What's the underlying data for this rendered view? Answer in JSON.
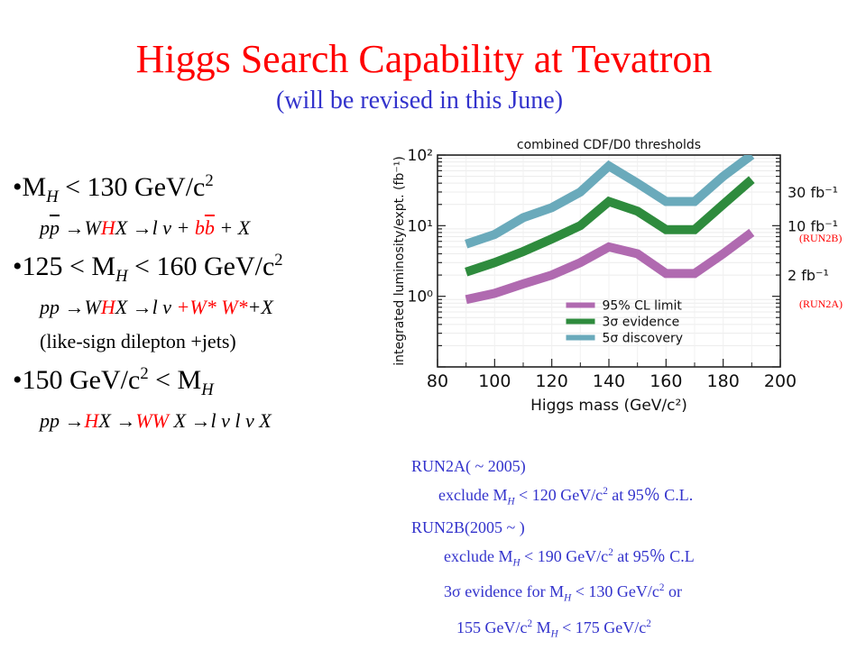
{
  "title": "Higgs Search Capability at Tevatron",
  "subtitle": "(will be revised in this June)",
  "bullets": {
    "b1": {
      "dot": "•M",
      "sub": "H",
      "rest": " < 130 GeV/c",
      "sup": "2"
    },
    "r1": {
      "p1": "p",
      "p2": "p",
      "arrow1": " →W",
      "h": "H",
      "x": "X →l ",
      "nu": "ν",
      "plus": " + ",
      "b1": "b",
      "b2": "b",
      "end": " + X"
    },
    "b2": {
      "pre": "•125 < M",
      "sub": "H",
      "rest": " < 160 GeV/c",
      "sup": "2"
    },
    "r2": {
      "pp": "pp →W",
      "h": "H",
      "x": "X →l ",
      "nu": "ν",
      "ww": " +W* W*",
      "end": "+X"
    },
    "note": "(like-sign dilepton +jets)",
    "b3": {
      "pre": "•150 GeV/c",
      "sup": "2",
      "mid": " < M",
      "sub": "H"
    },
    "r3": {
      "pp": "pp →",
      "h": "H",
      "x": "X →",
      "ww": "WW",
      "end1": " X →l ",
      "nu1": "ν",
      "l2": " l ",
      "nu2": "ν",
      "end2": " X"
    }
  },
  "side_labels": {
    "run2b": "(RUN2B)",
    "run2a": "(RUN2A)"
  },
  "chart_data": {
    "type": "line",
    "title": "combined CDF/D0 thresholds",
    "xlabel": "Higgs mass (GeV/c²)",
    "ylabel": "integrated luminosity/expt. (fb⁻¹)",
    "xlim": [
      80,
      200
    ],
    "ylim": [
      0.1,
      100
    ],
    "yscale": "log",
    "x_ticks": [
      "80",
      "100",
      "120",
      "140",
      "160",
      "180",
      "200"
    ],
    "y_ticks": [
      "10⁰",
      "10¹",
      "10²"
    ],
    "right_labels": [
      "30 fb⁻¹",
      "10 fb⁻¹",
      "2 fb⁻¹"
    ],
    "right_values": [
      30,
      10,
      2
    ],
    "legend_position": "bottom-center",
    "series": [
      {
        "name": "95% CL limit",
        "color": "#b06ab0",
        "x": [
          90,
          100,
          110,
          120,
          130,
          140,
          150,
          160,
          170,
          180,
          190
        ],
        "y": [
          0.9,
          1.1,
          1.5,
          2.0,
          3.0,
          5.0,
          4.0,
          2.1,
          2.1,
          4.0,
          8.0
        ]
      },
      {
        "name": "3σ evidence",
        "color": "#2e8b3d",
        "x": [
          90,
          100,
          110,
          120,
          130,
          140,
          150,
          160,
          170,
          180,
          190
        ],
        "y": [
          2.2,
          3.0,
          4.3,
          6.5,
          10,
          22,
          16,
          8.8,
          8.8,
          20,
          45
        ]
      },
      {
        "name": "5σ discovery",
        "color": "#6aaabb",
        "x": [
          90,
          100,
          110,
          120,
          130,
          140,
          150,
          160,
          170,
          180,
          190
        ],
        "y": [
          5.5,
          7.5,
          13,
          18,
          30,
          70,
          40,
          22,
          22,
          50,
          100
        ]
      }
    ]
  },
  "notes": {
    "l1": "RUN2A( ~ 2005)",
    "l2": {
      "a": "exclude M",
      "sub": "H",
      "b": " < 120 GeV/c",
      "sup": "2",
      "c": " at 95％ C.L."
    },
    "l3": "RUN2B(2005 ~ )",
    "l4": {
      "a": "exclude M",
      "sub": "H",
      "b": " < 190 GeV/c",
      "sup": "2",
      "c": " at 95％ C.L"
    },
    "l5": {
      "a": "3σ evidence for M",
      "sub": "H",
      "b": " < 130 GeV/c",
      "sup": "2",
      "c": "  or"
    },
    "l6": {
      "a": "155 GeV/c",
      "sup": "2",
      "b": " M",
      "sub": "H",
      "c": " < 175 GeV/c",
      "sup2": "2"
    }
  }
}
